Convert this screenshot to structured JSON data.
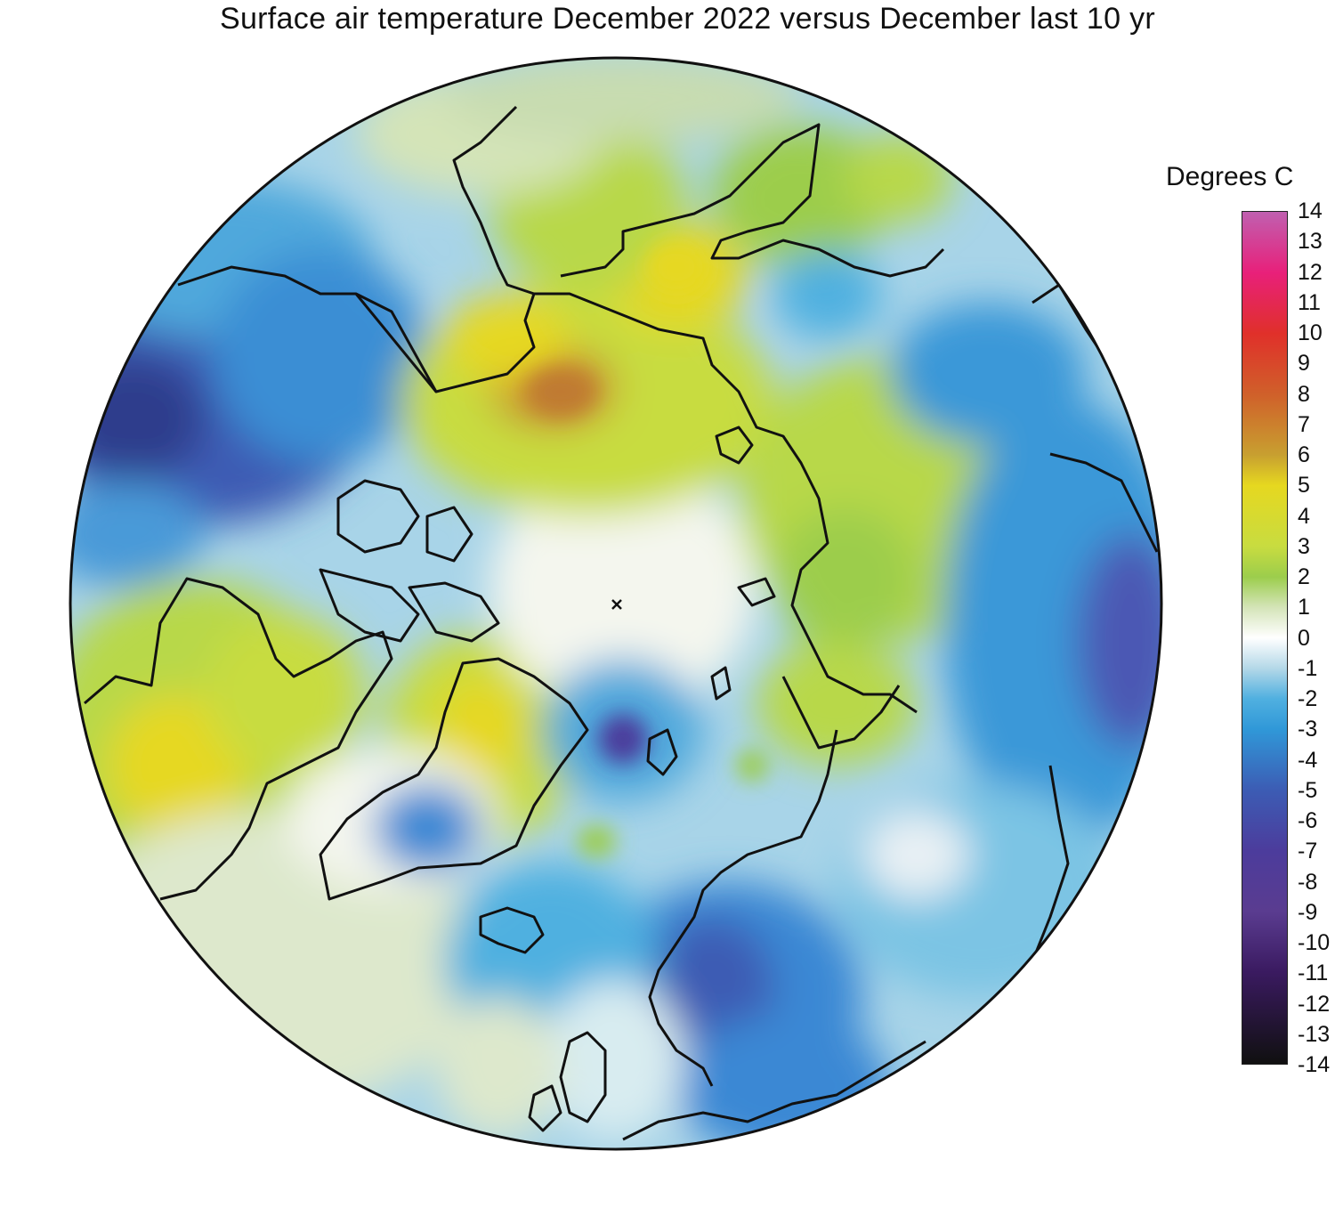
{
  "title": "Surface air temperature December 2022 versus December last 10 yr",
  "legend": {
    "unit": "Degrees C",
    "ticks": [
      "14",
      "13",
      "12",
      "11",
      "10",
      "9",
      "8",
      "7",
      "6",
      "5",
      "4",
      "3",
      "2",
      "1",
      "0",
      "-1",
      "-2",
      "-3",
      "-4",
      "-5",
      "-6",
      "-7",
      "-8",
      "-9",
      "-10",
      "-11",
      "-12",
      "-13",
      "-14"
    ],
    "range": [
      -14,
      14
    ],
    "colors": [
      {
        "value": 14,
        "color": "#c060b0"
      },
      {
        "value": 12,
        "color": "#e8207a"
      },
      {
        "value": 10,
        "color": "#e0302a"
      },
      {
        "value": 8,
        "color": "#d0602a"
      },
      {
        "value": 6,
        "color": "#c8a030"
      },
      {
        "value": 5,
        "color": "#e6d820"
      },
      {
        "value": 3,
        "color": "#c8dc40"
      },
      {
        "value": 2,
        "color": "#9ccd4c"
      },
      {
        "value": 1,
        "color": "#d4e4b8"
      },
      {
        "value": 0,
        "color": "#ffffff"
      },
      {
        "value": -1,
        "color": "#b4d8e8"
      },
      {
        "value": -2,
        "color": "#50b0e0"
      },
      {
        "value": -3,
        "color": "#3098d8"
      },
      {
        "value": -5,
        "color": "#3c5cb4"
      },
      {
        "value": -7,
        "color": "#4c3c9c"
      },
      {
        "value": -9,
        "color": "#5a3c90"
      },
      {
        "value": -11,
        "color": "#3a1a60"
      },
      {
        "value": -14,
        "color": "#101010"
      }
    ]
  },
  "map": {
    "projection": "north-polar-stereographic",
    "center_marker": "pole-x-marker"
  }
}
